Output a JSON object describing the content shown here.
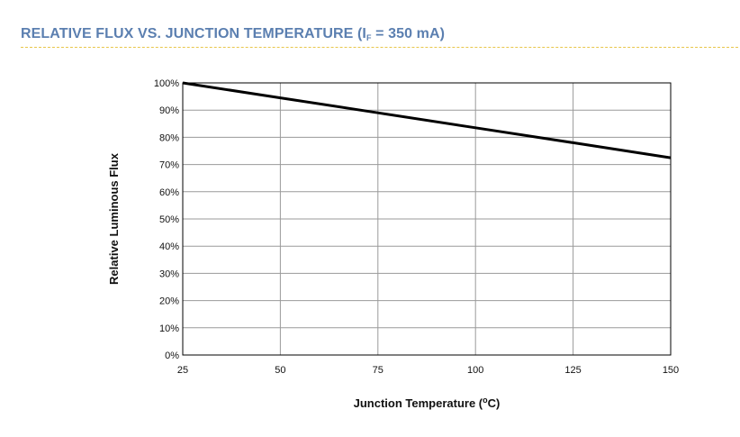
{
  "header": {
    "title_pre": "RELATIVE FLUX VS. JUNCTION TEMPERATURE (I",
    "title_sub": "F",
    "title_post": " = 350 mA)"
  },
  "colors": {
    "title": "#5b7fb0",
    "rule": "#e8c64a",
    "grid": "#9a9a9a",
    "line": "#000000"
  },
  "chart_data": {
    "type": "line",
    "title": "RELATIVE FLUX VS. JUNCTION TEMPERATURE (IF = 350 mA)",
    "xlabel_pre": "Junction Temperature (",
    "xlabel_sup": "o",
    "xlabel_post": "C)",
    "ylabel": "Relative Luminous Flux",
    "xlim": [
      25,
      150
    ],
    "ylim": [
      0,
      100
    ],
    "x_ticks": [
      25,
      50,
      75,
      100,
      125,
      150
    ],
    "y_ticks": [
      0,
      10,
      20,
      30,
      40,
      50,
      60,
      70,
      80,
      90,
      100
    ],
    "y_tick_labels": [
      "0%",
      "10%",
      "20%",
      "30%",
      "40%",
      "50%",
      "60%",
      "70%",
      "80%",
      "90%",
      "100%"
    ],
    "grid": true,
    "legend": "none",
    "series": [
      {
        "name": "Relative Luminous Flux",
        "x": [
          25,
          50,
          75,
          100,
          125,
          150
        ],
        "y": [
          100,
          94.5,
          89,
          83.5,
          78,
          72.5
        ]
      }
    ]
  }
}
